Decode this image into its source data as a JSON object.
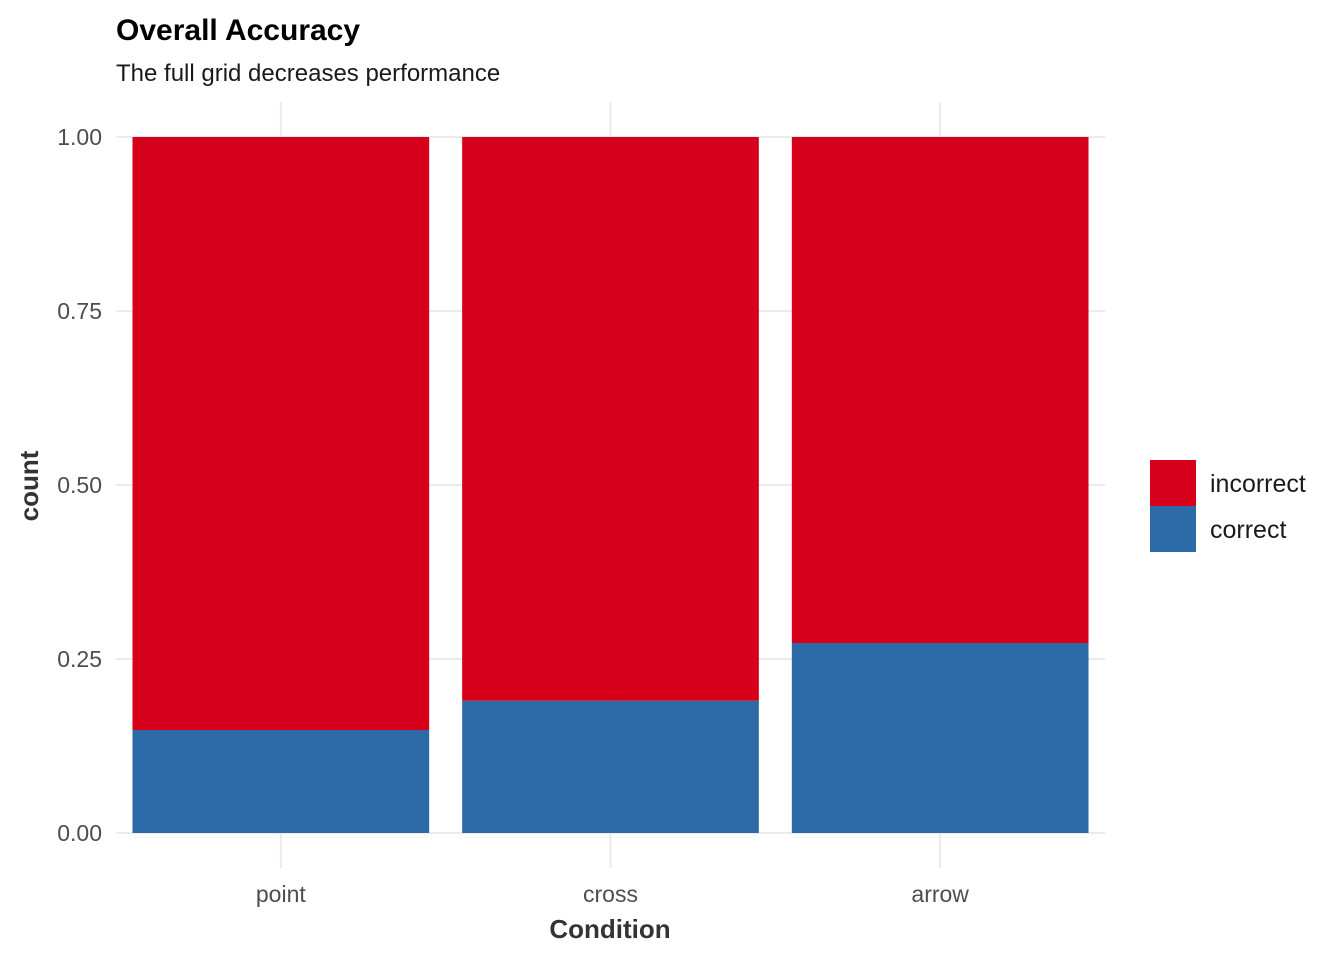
{
  "chart_data": {
    "type": "bar",
    "stacked": true,
    "title": "Overall Accuracy",
    "subtitle": "The full grid decreases performance",
    "xlabel": "Condition",
    "ylabel": "count",
    "categories": [
      "point",
      "cross",
      "arrow"
    ],
    "series": [
      {
        "name": "correct",
        "color": "#2c6aa8",
        "values": [
          0.148,
          0.19,
          0.273
        ]
      },
      {
        "name": "incorrect",
        "color": "#d7001a",
        "values": [
          0.852,
          0.81,
          0.727
        ]
      }
    ],
    "ylim": [
      0,
      1
    ],
    "yticks": [
      0,
      0.25,
      0.5,
      0.75,
      1
    ],
    "ytick_labels": [
      "0.00",
      "0.25",
      "0.50",
      "0.75",
      "1.00"
    ],
    "legend": {
      "position": "right",
      "entries": [
        {
          "label": "incorrect",
          "color": "#d7001a"
        },
        {
          "label": "correct",
          "color": "#2c6aa8"
        }
      ]
    }
  }
}
